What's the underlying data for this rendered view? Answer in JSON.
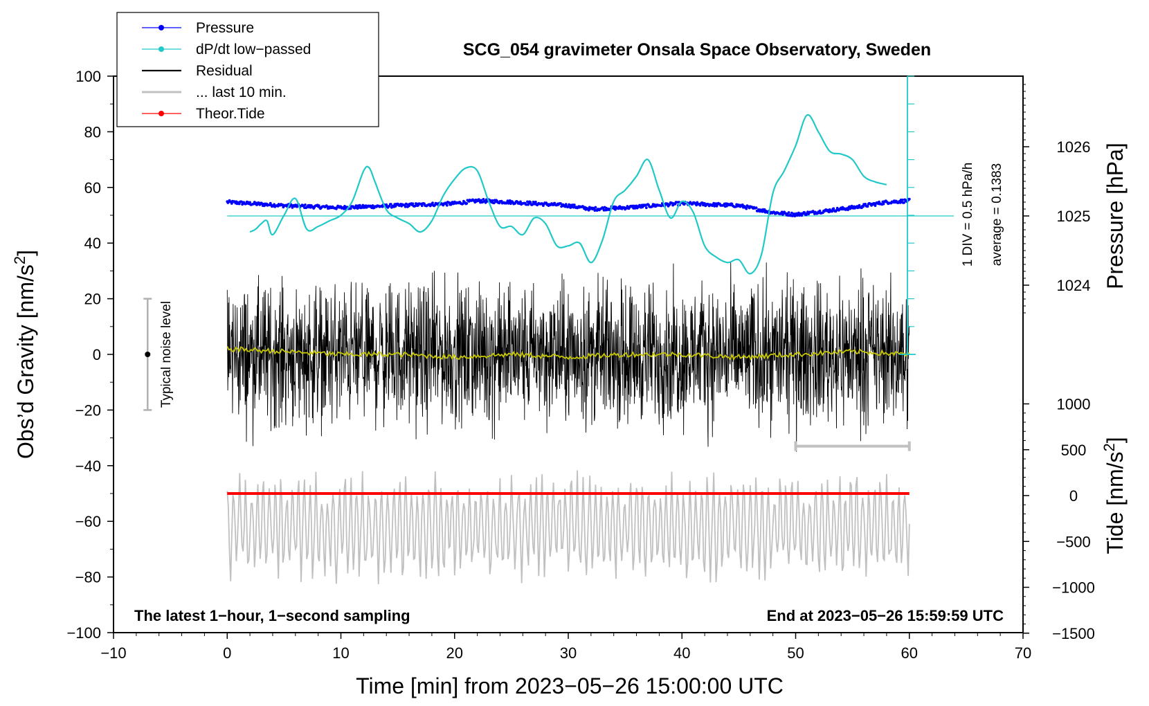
{
  "chart_data": {
    "type": "line",
    "title": "SCG_054 gravimeter Onsala Space Observatory, Sweden",
    "xlabel": "Time [min] from 2023−05−26 15:00:00 UTC",
    "ylabel_left": "Obs’d Gravity [nm/s",
    "ylabel_left_sup": "2",
    "ylabel_left_end": "]",
    "ylabel_pressure": "Pressure [hPa]",
    "ylabel_tide": "Tide [nm/s",
    "ylabel_tide_sup": "2",
    "ylabel_tide_end": "]",
    "xlim": [
      -10,
      70
    ],
    "ylim": [
      -100,
      100
    ],
    "x_ticks": [
      "−10",
      "0",
      "10",
      "20",
      "30",
      "40",
      "50",
      "60",
      "70"
    ],
    "x_tick_values": [
      -10,
      0,
      10,
      20,
      30,
      40,
      50,
      60,
      70
    ],
    "y_ticks": [
      "100",
      "80",
      "60",
      "40",
      "20",
      "0",
      "−20",
      "−40",
      "−60",
      "−80",
      "−100"
    ],
    "y_tick_values": [
      100,
      80,
      60,
      40,
      20,
      0,
      -20,
      -40,
      -60,
      -80,
      -100
    ],
    "pressure_ticks": [
      "1026",
      "1025",
      "1024"
    ],
    "pressure_tick_values": [
      1026,
      1025,
      1024
    ],
    "tide_ticks": [
      "1000",
      "500",
      "0",
      "−500",
      "−1000",
      "−1500"
    ],
    "tide_tick_values": [
      1000,
      500,
      0,
      -500,
      -1000,
      -1500
    ],
    "legend": [
      {
        "label": "Pressure",
        "color": "#0000ff",
        "marker": true
      },
      {
        "label": "dP/dt low−passed",
        "color": "#20c8c8",
        "marker": true
      },
      {
        "label": "Residual",
        "color": "#000000",
        "marker": false
      },
      {
        "label": "... last 10 min.",
        "color": "#c0c0c0",
        "marker": false
      },
      {
        "label": "Theor.Tide",
        "color": "#ff0000",
        "marker": true
      }
    ],
    "noise_label": "Typical noise level",
    "noise_range": [
      -20,
      20
    ],
    "dpdt_scale_label": "1 DIV = 0.5 hPa/h",
    "average_label": "average = 0.1383",
    "annotation_left": "The latest 1−hour, 1−second sampling",
    "annotation_right": "End at 2023−05−26 15:59:59 UTC",
    "last10_range_min": [
      50,
      60
    ],
    "series": [
      {
        "name": "Pressure",
        "color": "#0000ff",
        "unit": "hPa",
        "x": [
          0,
          5,
          10,
          15,
          20,
          22,
          25,
          30,
          32,
          35,
          40,
          45,
          48,
          50,
          55,
          58,
          60
        ],
        "values": [
          1025.2,
          1025.15,
          1025.12,
          1025.15,
          1025.18,
          1025.22,
          1025.2,
          1025.15,
          1025.1,
          1025.12,
          1025.18,
          1025.15,
          1025.05,
          1025.02,
          1025.12,
          1025.2,
          1025.22
        ]
      },
      {
        "name": "dP/dt low-passed",
        "color": "#20c8c8",
        "unit": "nm/s2 axis",
        "x": [
          2,
          2.5,
          3,
          3.5,
          4,
          5,
          6,
          7,
          8,
          9,
          10,
          11,
          12,
          12.5,
          13,
          14,
          15,
          16,
          17,
          18,
          19,
          20,
          21,
          22,
          23,
          24,
          25,
          26,
          27,
          28,
          29,
          30,
          31,
          32,
          33,
          34,
          35,
          36,
          37,
          38,
          39,
          40,
          41,
          42,
          43,
          44,
          45,
          46,
          47,
          48,
          49,
          50,
          51,
          52,
          53,
          54,
          55,
          56,
          57,
          58
        ],
        "values": [
          44,
          45,
          47,
          48,
          43,
          50,
          56,
          45,
          46,
          48,
          50,
          55,
          66,
          67,
          62,
          52,
          49,
          47,
          44,
          48,
          57,
          63,
          67,
          66,
          55,
          46,
          46,
          43,
          49,
          47,
          39,
          39,
          40,
          33,
          41,
          55,
          59,
          64,
          70,
          59,
          49,
          55,
          51,
          39,
          35,
          33,
          34,
          29,
          36,
          58,
          66,
          75,
          86,
          80,
          73,
          72,
          70,
          64,
          62,
          61
        ]
      },
      {
        "name": "Residual",
        "color": "#000000",
        "unit": "nm/s2",
        "x_range": [
          0,
          60
        ],
        "mean": 0,
        "envelope": 33
      },
      {
        "name": "Residual low-passed",
        "color": "#c8c800",
        "unit": "nm/s2",
        "x": [
          0,
          5,
          10,
          15,
          20,
          25,
          30,
          35,
          40,
          45,
          50,
          55,
          60
        ],
        "values": [
          2,
          1,
          0,
          0,
          -1,
          0,
          -1,
          0,
          0,
          -1,
          0,
          1,
          0
        ]
      },
      {
        "name": "... last 10 min.",
        "color": "#c0c0c0",
        "unit": "nm/s2",
        "x_range": [
          0,
          60
        ],
        "offset": -62,
        "envelope": 18
      },
      {
        "name": "Theor.Tide",
        "color": "#ff0000",
        "unit": "nm/s2",
        "x": [
          0,
          60
        ],
        "values": [
          -50,
          -50
        ]
      }
    ]
  }
}
